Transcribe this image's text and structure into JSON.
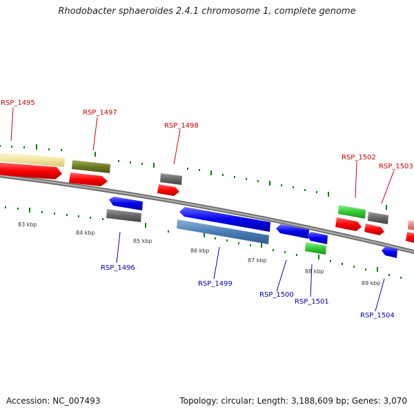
{
  "title": "Rhodobacter sphaeroides 2.4.1 chromosome 1, complete genome",
  "footer": {
    "accession": "Accession: NC_007493",
    "topology": "Topology: circular; Length: 3,188,609 bp; Genes: 3,070"
  },
  "colors": {
    "forward_label": "#cc0000",
    "reverse_label": "#0000aa",
    "tick": "#008000",
    "backbone": "#8c8c8c"
  },
  "kbp_labels": [
    "83 kbp",
    "84 kbp",
    "85 kbp",
    "86 kbp",
    "87 kbp",
    "88 kbp",
    "89 kbp"
  ],
  "forward_genes": [
    "RSP_1495",
    "RSP_1497",
    "RSP_1498",
    "RSP_1502",
    "RSP_1503"
  ],
  "reverse_genes": [
    "RSP_1496",
    "RSP_1499",
    "RSP_1500",
    "RSP_1501",
    "RSP_1504"
  ]
}
